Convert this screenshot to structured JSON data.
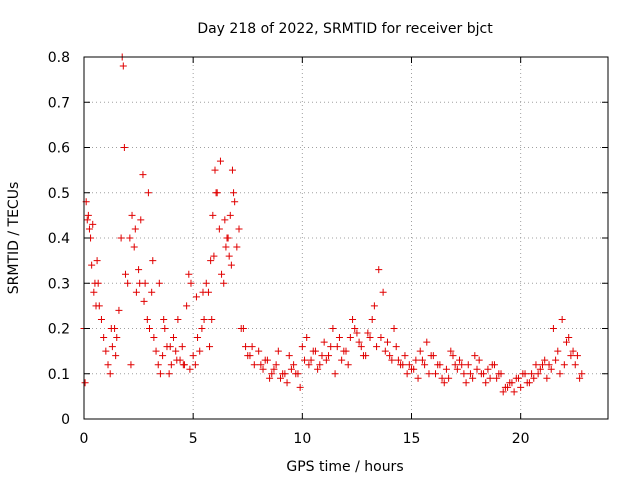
{
  "chart_data": {
    "type": "scatter",
    "title": "Day 218 of 2022, SRMTID for receiver bjct",
    "xlabel": "GPS time / hours",
    "ylabel": "SRMTID / TECUs",
    "xlim": [
      0,
      24
    ],
    "ylim": [
      0,
      0.8
    ],
    "xticks": [
      0,
      5,
      10,
      15,
      20
    ],
    "xtick_labels": [
      "0",
      "5",
      "10",
      "15",
      "20"
    ],
    "yticks": [
      0,
      0.1,
      0.2,
      0.3,
      0.4,
      0.5,
      0.6,
      0.7,
      0.8
    ],
    "ytick_labels": [
      "0",
      "0.1",
      "0.2",
      "0.3",
      "0.4",
      "0.5",
      "0.6",
      "0.7",
      "0.8"
    ],
    "grid": true,
    "marker": "+",
    "color": "#e00000",
    "series": [
      {
        "name": "bjct",
        "x": [
          0.0,
          0.1,
          0.2,
          0.3,
          0.4,
          0.5,
          0.6,
          0.7,
          0.8,
          0.9,
          1.0,
          1.1,
          1.2,
          1.3,
          1.4,
          1.5,
          1.6,
          1.7,
          1.75,
          1.8,
          1.85,
          1.9,
          2.0,
          2.1,
          2.2,
          2.3,
          2.4,
          2.5,
          2.6,
          2.7,
          2.8,
          2.9,
          3.0,
          3.1,
          3.2,
          3.3,
          3.4,
          3.5,
          3.6,
          3.7,
          3.8,
          3.9,
          4.0,
          4.1,
          4.2,
          4.3,
          4.4,
          4.5,
          4.6,
          4.7,
          4.8,
          4.9,
          5.0,
          5.1,
          5.2,
          5.3,
          5.4,
          5.5,
          5.6,
          5.7,
          5.8,
          5.9,
          6.0,
          6.1,
          6.2,
          6.3,
          6.4,
          6.5,
          6.6,
          6.7,
          6.8,
          6.9,
          7.0,
          7.2,
          7.4,
          7.6,
          7.8,
          8.0,
          8.2,
          8.4,
          8.6,
          8.8,
          9.0,
          9.2,
          9.4,
          9.6,
          9.8,
          10.0,
          10.2,
          10.4,
          10.6,
          10.8,
          11.0,
          11.2,
          11.4,
          11.6,
          11.8,
          12.0,
          12.2,
          12.4,
          12.6,
          12.8,
          13.0,
          13.2,
          13.4,
          13.6,
          13.8,
          14.0,
          14.2,
          14.4,
          14.6,
          14.8,
          15.0,
          15.2,
          15.4,
          15.6,
          15.8,
          16.0,
          16.2,
          16.4,
          16.6,
          16.8,
          17.0,
          17.2,
          17.4,
          17.6,
          17.8,
          18.0,
          18.2,
          18.4,
          18.6,
          18.8,
          19.0,
          19.2,
          19.4,
          19.6,
          19.8,
          20.0,
          20.2,
          20.4,
          20.6,
          20.8,
          21.0,
          21.2,
          21.4,
          21.6,
          21.8,
          22.0,
          22.2,
          22.4,
          22.6,
          22.8,
          0.05,
          0.15,
          0.25,
          0.35,
          0.45,
          0.55,
          0.65,
          1.25,
          1.45,
          2.15,
          2.35,
          2.55,
          2.75,
          2.95,
          3.15,
          3.45,
          3.65,
          3.95,
          4.25,
          4.55,
          4.85,
          5.15,
          5.45,
          5.75,
          5.85,
          5.95,
          6.05,
          6.25,
          6.45,
          6.55,
          6.65,
          6.75,
          6.85,
          7.1,
          7.3,
          7.5,
          7.7,
          8.1,
          8.3,
          8.5,
          8.7,
          8.9,
          9.1,
          9.3,
          9.5,
          9.7,
          9.9,
          10.1,
          10.3,
          10.5,
          10.7,
          10.9,
          11.1,
          11.3,
          11.5,
          11.7,
          11.9,
          12.1,
          12.3,
          12.5,
          12.7,
          12.9,
          13.1,
          13.3,
          13.5,
          13.7,
          13.9,
          14.1,
          14.3,
          14.5,
          14.7,
          14.9,
          15.1,
          15.3,
          15.5,
          15.7,
          15.9,
          16.1,
          16.3,
          16.5,
          16.7,
          16.9,
          17.1,
          17.3,
          17.5,
          17.7,
          17.9,
          18.1,
          18.3,
          18.5,
          18.7,
          18.9,
          19.1,
          19.3,
          19.5,
          19.7,
          19.9,
          20.1,
          20.3,
          20.5,
          20.7,
          20.9,
          21.1,
          21.3,
          21.5,
          21.7,
          21.9,
          22.1,
          22.3,
          22.5,
          22.7
        ],
        "y": [
          0.2,
          0.48,
          0.45,
          0.4,
          0.43,
          0.3,
          0.35,
          0.25,
          0.22,
          0.18,
          0.15,
          0.12,
          0.1,
          0.16,
          0.2,
          0.18,
          0.24,
          0.4,
          0.8,
          0.78,
          0.6,
          0.32,
          0.3,
          0.4,
          0.45,
          0.38,
          0.28,
          0.33,
          0.44,
          0.54,
          0.3,
          0.22,
          0.2,
          0.28,
          0.18,
          0.15,
          0.12,
          0.1,
          0.14,
          0.2,
          0.16,
          0.1,
          0.12,
          0.18,
          0.15,
          0.22,
          0.13,
          0.16,
          0.12,
          0.25,
          0.32,
          0.3,
          0.14,
          0.12,
          0.18,
          0.15,
          0.2,
          0.22,
          0.3,
          0.28,
          0.35,
          0.45,
          0.55,
          0.5,
          0.42,
          0.32,
          0.3,
          0.38,
          0.4,
          0.45,
          0.55,
          0.48,
          0.38,
          0.2,
          0.16,
          0.14,
          0.12,
          0.15,
          0.11,
          0.13,
          0.1,
          0.12,
          0.09,
          0.1,
          0.14,
          0.12,
          0.1,
          0.16,
          0.18,
          0.13,
          0.15,
          0.12,
          0.17,
          0.14,
          0.2,
          0.16,
          0.13,
          0.15,
          0.18,
          0.2,
          0.17,
          0.14,
          0.19,
          0.22,
          0.16,
          0.18,
          0.15,
          0.14,
          0.2,
          0.13,
          0.12,
          0.1,
          0.11,
          0.13,
          0.15,
          0.12,
          0.1,
          0.14,
          0.12,
          0.09,
          0.11,
          0.15,
          0.12,
          0.13,
          0.1,
          0.12,
          0.09,
          0.11,
          0.1,
          0.08,
          0.09,
          0.12,
          0.1,
          0.06,
          0.07,
          0.08,
          0.09,
          0.07,
          0.1,
          0.08,
          0.09,
          0.1,
          0.12,
          0.09,
          0.11,
          0.13,
          0.1,
          0.12,
          0.18,
          0.15,
          0.14,
          0.1,
          0.08,
          0.44,
          0.42,
          0.34,
          0.28,
          0.25,
          0.3,
          0.2,
          0.14,
          0.12,
          0.42,
          0.3,
          0.26,
          0.5,
          0.35,
          0.3,
          0.22,
          0.16,
          0.13,
          0.12,
          0.11,
          0.27,
          0.28,
          0.16,
          0.22,
          0.36,
          0.5,
          0.57,
          0.44,
          0.4,
          0.36,
          0.34,
          0.5,
          0.42,
          0.2,
          0.14,
          0.16,
          0.12,
          0.13,
          0.09,
          0.11,
          0.15,
          0.1,
          0.08,
          0.11,
          0.1,
          0.07,
          0.13,
          0.12,
          0.15,
          0.11,
          0.14,
          0.13,
          0.16,
          0.1,
          0.18,
          0.15,
          0.12,
          0.22,
          0.19,
          0.16,
          0.14,
          0.18,
          0.25,
          0.33,
          0.28,
          0.17,
          0.13,
          0.16,
          0.12,
          0.14,
          0.12,
          0.11,
          0.09,
          0.13,
          0.17,
          0.14,
          0.1,
          0.12,
          0.08,
          0.09,
          0.14,
          0.11,
          0.12,
          0.08,
          0.1,
          0.14,
          0.13,
          0.1,
          0.11,
          0.12,
          0.09,
          0.1,
          0.07,
          0.08,
          0.06,
          0.09,
          0.1,
          0.08,
          0.1,
          0.12,
          0.11,
          0.13,
          0.12,
          0.2,
          0.15,
          0.22,
          0.17,
          0.14,
          0.12,
          0.09
        ]
      }
    ]
  }
}
